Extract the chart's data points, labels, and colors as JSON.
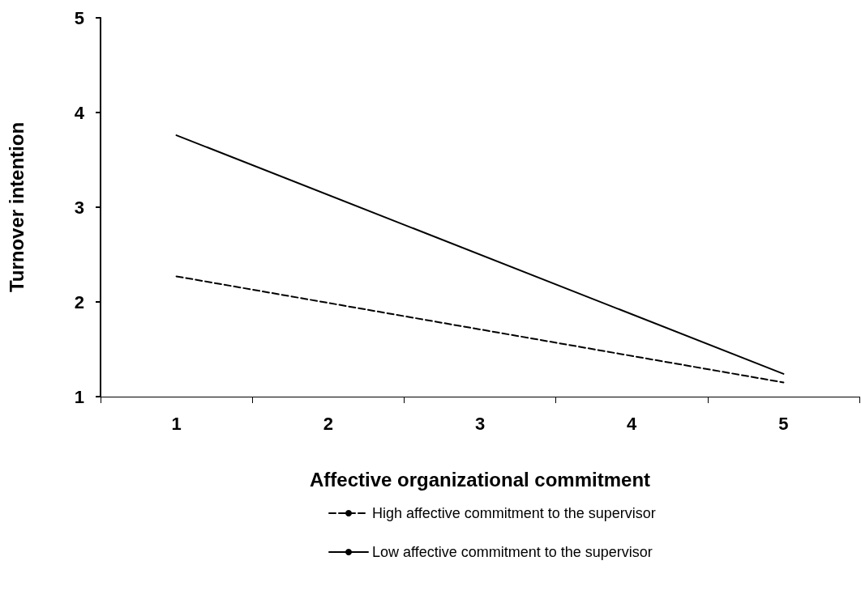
{
  "chart_data": {
    "type": "line",
    "xlabel": "Affective organizational commitment",
    "ylabel": "Turnover intention",
    "categories": [
      "1",
      "2",
      "3",
      "4",
      "5"
    ],
    "series": [
      {
        "name": "High affective commitment to the supervisor",
        "color": "#000000",
        "line_style": "dashed",
        "values": [
          2.27,
          null,
          null,
          null,
          1.15
        ]
      },
      {
        "name": "Low affective commitment to the supervisor",
        "color": "#000000",
        "line_style": "solid",
        "values": [
          3.76,
          null,
          null,
          null,
          1.24
        ]
      }
    ],
    "ylim": [
      1,
      5
    ],
    "yticks": [
      1,
      2,
      3,
      4,
      5
    ],
    "grid": false,
    "legend": "bottom",
    "marker": "none"
  }
}
